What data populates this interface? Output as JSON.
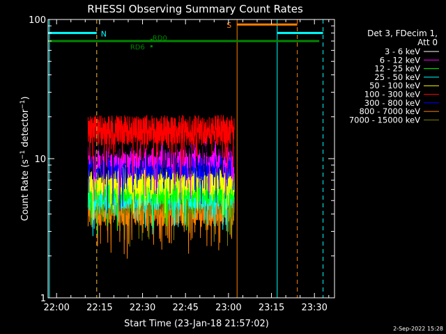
{
  "chart_data": {
    "type": "line",
    "title": "RHESSI Observing Summary Count Rates",
    "xlabel": "Start Time (23-Jan-18 21:57:02)",
    "ylabel": "Count Rate (s⁻¹ detector⁻¹)",
    "ylabel_main": "Count Rate (s",
    "ylabel_exp1": "−1",
    "ylabel_mid": " detector",
    "ylabel_exp2": "−1",
    "ylabel_end": ")",
    "yscale": "log",
    "ylim": [
      1,
      100
    ],
    "xlim": [
      "21:57:02",
      "23:37:00"
    ],
    "x_ticks": [
      "22:00",
      "22:15",
      "22:30",
      "22:45",
      "23:00",
      "23:15",
      "23:30"
    ],
    "y_ticks": [
      "1",
      "10",
      "100"
    ],
    "legend_title_1": "Det 3, FDecim 1,",
    "legend_title_2": "Att 0",
    "legend_position": "right",
    "series": [
      {
        "name": "3 - 6 keV",
        "color": "#000000",
        "level": 13
      },
      {
        "name": "6 - 12 keV",
        "color": "#ff00ff",
        "level": 11
      },
      {
        "name": "12 - 25 keV",
        "color": "#00ff00",
        "level": 6
      },
      {
        "name": "25 - 50 keV",
        "color": "#00ffff",
        "level": 5.5
      },
      {
        "name": "50 - 100 keV",
        "color": "#ffff00",
        "level": 7
      },
      {
        "name": "100 - 300 keV",
        "color": "#ff0000",
        "level": 16
      },
      {
        "name": "300 - 800 keV",
        "color": "#0000ff",
        "level": 9
      },
      {
        "name": "800 - 7000 keV",
        "color": "#ff8000",
        "level": 4.2
      },
      {
        "name": "7000 - 15000 keV",
        "color": "#808000",
        "level": 5
      }
    ],
    "data_start": "22:11:00",
    "data_end": "23:02:00",
    "annotations": {
      "n_label": "N",
      "s_label": "S",
      "rd0_label": "RD0",
      "rd6_label": "RD6",
      "night_1": [
        "21:57:02",
        "22:14:00"
      ],
      "night_2": [
        "23:17:00",
        "23:33:00"
      ],
      "saa": [
        "23:03:00",
        "23:24:00"
      ],
      "flag_level": 70,
      "cyan_solid_times": [
        "21:57:30",
        "23:17:00"
      ],
      "cyan_dashed_times": [
        "22:14:00",
        "23:33:00"
      ],
      "orange_solid_times": [
        "23:03:00"
      ],
      "orange_dashed_times": [
        "22:14:00",
        "23:24:00"
      ]
    },
    "timestamp": "2-Sep-2022 15:28"
  }
}
